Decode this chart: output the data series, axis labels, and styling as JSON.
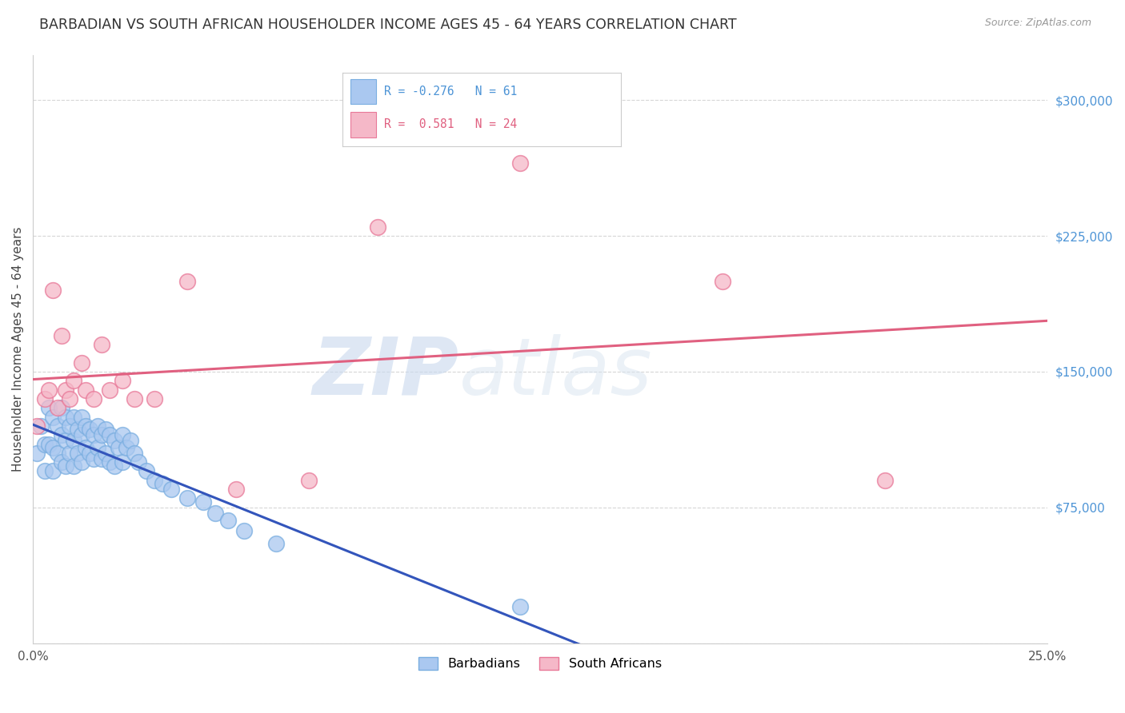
{
  "title": "BARBADIAN VS SOUTH AFRICAN HOUSEHOLDER INCOME AGES 45 - 64 YEARS CORRELATION CHART",
  "source": "Source: ZipAtlas.com",
  "ylabel": "Householder Income Ages 45 - 64 years",
  "xlim": [
    0.0,
    0.25
  ],
  "ylim": [
    0,
    325000
  ],
  "xticks": [
    0.0,
    0.05,
    0.1,
    0.15,
    0.2,
    0.25
  ],
  "xticklabels": [
    "0.0%",
    "",
    "",
    "",
    "",
    "25.0%"
  ],
  "yticks": [
    0,
    75000,
    150000,
    225000,
    300000
  ],
  "yticklabels": [
    "",
    "$75,000",
    "$150,000",
    "$225,000",
    "$300,000"
  ],
  "ytick_color": "#4d94d6",
  "barbadian_color": "#aac8f0",
  "south_african_color": "#f5b8c8",
  "barbadian_edge": "#7aaee0",
  "south_african_edge": "#e87898",
  "trendline_barbadian_solid_color": "#3355bb",
  "trendline_barbadian_dashed_color": "#aabbd8",
  "trendline_south_african_color": "#e06080",
  "R_barbadian": -0.276,
  "N_barbadian": 61,
  "R_south_african": 0.581,
  "N_south_african": 24,
  "legend_label_barbadian": "Barbadians",
  "legend_label_south_african": "South Africans",
  "watermark_zip": "ZIP",
  "watermark_atlas": "atlas",
  "background_color": "#ffffff",
  "grid_color": "#cccccc",
  "barbadian_x": [
    0.001,
    0.002,
    0.003,
    0.003,
    0.004,
    0.004,
    0.005,
    0.005,
    0.005,
    0.006,
    0.006,
    0.007,
    0.007,
    0.007,
    0.008,
    0.008,
    0.008,
    0.009,
    0.009,
    0.01,
    0.01,
    0.01,
    0.011,
    0.011,
    0.012,
    0.012,
    0.012,
    0.013,
    0.013,
    0.014,
    0.014,
    0.015,
    0.015,
    0.016,
    0.016,
    0.017,
    0.017,
    0.018,
    0.018,
    0.019,
    0.019,
    0.02,
    0.02,
    0.021,
    0.022,
    0.022,
    0.023,
    0.024,
    0.025,
    0.026,
    0.028,
    0.03,
    0.032,
    0.034,
    0.038,
    0.042,
    0.045,
    0.048,
    0.052,
    0.06,
    0.12
  ],
  "barbadian_y": [
    105000,
    120000,
    110000,
    95000,
    130000,
    110000,
    125000,
    108000,
    95000,
    120000,
    105000,
    130000,
    115000,
    100000,
    125000,
    112000,
    98000,
    120000,
    105000,
    125000,
    112000,
    98000,
    118000,
    105000,
    125000,
    115000,
    100000,
    120000,
    108000,
    118000,
    105000,
    115000,
    102000,
    120000,
    108000,
    115000,
    102000,
    118000,
    105000,
    115000,
    100000,
    112000,
    98000,
    108000,
    115000,
    100000,
    108000,
    112000,
    105000,
    100000,
    95000,
    90000,
    88000,
    85000,
    80000,
    78000,
    72000,
    68000,
    62000,
    55000,
    20000
  ],
  "south_african_x": [
    0.001,
    0.003,
    0.004,
    0.005,
    0.006,
    0.007,
    0.008,
    0.009,
    0.01,
    0.012,
    0.013,
    0.015,
    0.017,
    0.019,
    0.022,
    0.025,
    0.03,
    0.038,
    0.05,
    0.068,
    0.085,
    0.12,
    0.17,
    0.21
  ],
  "south_african_y": [
    120000,
    135000,
    140000,
    195000,
    130000,
    170000,
    140000,
    135000,
    145000,
    155000,
    140000,
    135000,
    165000,
    140000,
    145000,
    135000,
    135000,
    200000,
    85000,
    90000,
    230000,
    265000,
    200000,
    90000
  ]
}
